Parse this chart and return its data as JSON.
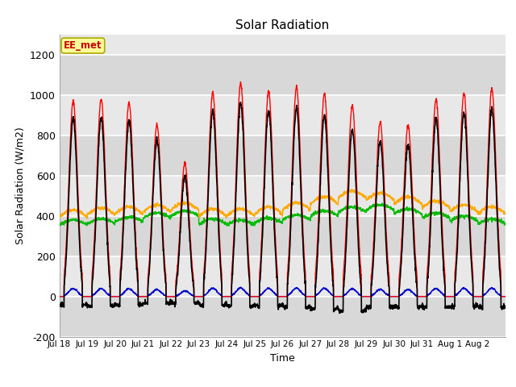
{
  "title": "Solar Radiation",
  "xlabel": "Time",
  "ylabel": "Solar Radiation (W/m2)",
  "annotation": "EE_met",
  "ylim": [
    -200,
    1300
  ],
  "yticks": [
    -200,
    0,
    200,
    400,
    600,
    800,
    1000,
    1200
  ],
  "n_days": 16,
  "colors": {
    "SW_in": "#ff0000",
    "SW_out": "#0000cc",
    "LW_in": "#00bb00",
    "LW_out": "#ffaa00",
    "Rnet": "#000000"
  },
  "tick_labels": [
    "Jul 18",
    "Jul 19",
    "Jul 20",
    "Jul 21",
    "Jul 22",
    "Jul 23",
    "Jul 24",
    "Jul 25",
    "Jul 26",
    "Jul 27",
    "Jul 28",
    "Jul 29",
    "Jul 30",
    "Jul 31",
    "Aug 1",
    "Aug 2"
  ],
  "bg_light": "#e8e8e8",
  "bg_dark": "#d0d0d0",
  "plot_bg": "#e0e0e0",
  "band_light": "#f0f0f0",
  "band_dark": "#e0e0e0",
  "peak_SW": [
    970,
    980,
    960,
    850,
    660,
    1010,
    1060,
    1020,
    1040,
    1010,
    950,
    870,
    850,
    980,
    1010,
    1030
  ],
  "LW_in_base": [
    355,
    360,
    370,
    390,
    400,
    360,
    355,
    365,
    380,
    400,
    420,
    430,
    410,
    390,
    375,
    360
  ],
  "LW_out_base": [
    395,
    405,
    410,
    420,
    430,
    400,
    400,
    410,
    430,
    460,
    490,
    480,
    460,
    440,
    420,
    410
  ]
}
